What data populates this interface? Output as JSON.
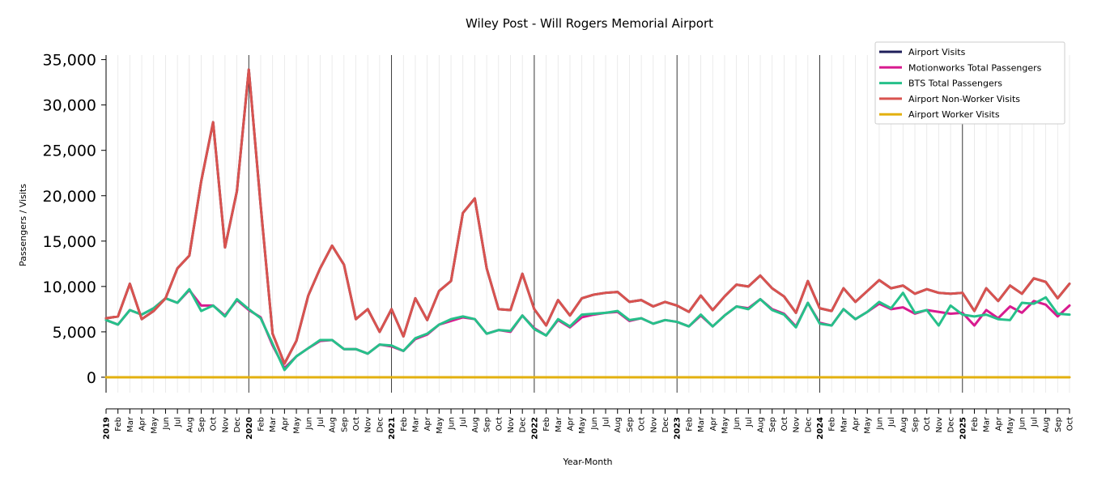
{
  "chart_data": {
    "type": "line",
    "title": "Wiley Post - Will Rogers Memorial Airport",
    "xlabel": "Year-Month",
    "ylabel": "Passengers / Visits",
    "ylim": [
      -1700,
      35500
    ],
    "yticks": [
      0,
      5000,
      10000,
      15000,
      20000,
      25000,
      30000,
      35000
    ],
    "ytick_labels": [
      "0",
      "5,000",
      "10,000",
      "15,000",
      "20,000",
      "25,000",
      "30,000",
      "35,000"
    ],
    "grid": "vertical lines at each month, darker at each January",
    "legend_position": "top-right",
    "x_labels": [
      "2019",
      "Feb",
      "Mar",
      "Apr",
      "May",
      "Jun",
      "Jul",
      "Aug",
      "Sep",
      "Oct",
      "Nov",
      "Dec",
      "2020",
      "Feb",
      "Mar",
      "Apr",
      "May",
      "Jun",
      "Jul",
      "Aug",
      "Sep",
      "Oct",
      "Nov",
      "Dec",
      "2021",
      "Feb",
      "Mar",
      "Apr",
      "May",
      "Jun",
      "Jul",
      "Aug",
      "Sep",
      "Oct",
      "Nov",
      "Dec",
      "2022",
      "Feb",
      "Mar",
      "Apr",
      "May",
      "Jun",
      "Jul",
      "Aug",
      "Sep",
      "Oct",
      "Nov",
      "Dec",
      "2023",
      "Feb",
      "Mar",
      "Apr",
      "May",
      "Jun",
      "Jul",
      "Aug",
      "Sep",
      "Oct",
      "Nov",
      "Dec",
      "2024",
      "Feb",
      "Mar",
      "Apr",
      "May",
      "Jun",
      "Jul",
      "Aug",
      "Sep",
      "Oct",
      "Nov",
      "Dec",
      "2025",
      "Feb",
      "Mar",
      "Apr",
      "May",
      "Jun",
      "Jul",
      "Aug",
      "Sep",
      "Oct"
    ],
    "series": [
      {
        "name": "Airport Visits",
        "color": "#1f1f5a",
        "values": [
          6500,
          6700,
          10300,
          6400,
          7300,
          8700,
          12000,
          13400,
          21600,
          28100,
          14300,
          20500,
          33900,
          18900,
          4800,
          1500,
          4000,
          9000,
          12000,
          14500,
          12400,
          6400,
          7500,
          5000,
          7500,
          4500,
          8700,
          6300,
          9500,
          10600,
          18100,
          19700,
          12000,
          7500,
          7400,
          11400,
          7500,
          5700,
          8500,
          6800,
          8700,
          9100,
          9300,
          9400,
          8300,
          8500,
          7800,
          8300,
          7900,
          7200,
          9000,
          7400,
          8900,
          10200,
          10000,
          11200,
          9800,
          8900,
          7100,
          10600,
          7600,
          7300,
          9800,
          8300,
          9500,
          10700,
          9800,
          10100,
          9200,
          9700,
          9300,
          9200,
          9300,
          7300,
          9800,
          8400,
          10100,
          9200,
          10900,
          10500,
          8700,
          10300
        ]
      },
      {
        "name": "Motionworks Total Passengers",
        "color": "#d81b8f",
        "values": [
          6300,
          5800,
          7400,
          6900,
          7600,
          8700,
          8200,
          9600,
          7900,
          7900,
          6800,
          8500,
          7400,
          6600,
          3500,
          1000,
          2300,
          3200,
          4000,
          4100,
          3100,
          3100,
          2600,
          3600,
          3400,
          2900,
          4200,
          4700,
          5800,
          6200,
          6600,
          6400,
          4800,
          5200,
          5000,
          6800,
          5400,
          4600,
          6300,
          5500,
          6600,
          6900,
          7100,
          7200,
          6200,
          6500,
          5900,
          6300,
          6100,
          5600,
          6800,
          5600,
          6800,
          7800,
          7600,
          8600,
          7500,
          7000,
          5600,
          8200,
          6000,
          5700,
          7500,
          6400,
          7200,
          8100,
          7500,
          7700,
          7000,
          7400,
          7200,
          7000,
          7100,
          5700,
          7400,
          6500,
          7800,
          7100,
          8400,
          8000,
          6700,
          7900
        ]
      },
      {
        "name": "BTS Total Passengers",
        "color": "#26c08a",
        "values": [
          6300,
          5800,
          7400,
          6900,
          7600,
          8700,
          8200,
          9700,
          7300,
          7900,
          6700,
          8600,
          7500,
          6500,
          3700,
          800,
          2300,
          3200,
          4100,
          4100,
          3100,
          3100,
          2600,
          3600,
          3500,
          2900,
          4300,
          4800,
          5800,
          6400,
          6700,
          6400,
          4800,
          5200,
          5100,
          6800,
          5300,
          4600,
          6400,
          5600,
          6900,
          7000,
          7100,
          7300,
          6300,
          6500,
          5900,
          6300,
          6100,
          5600,
          6900,
          5600,
          6800,
          7800,
          7500,
          8600,
          7400,
          6900,
          5500,
          8200,
          5900,
          5700,
          7500,
          6400,
          7200,
          8300,
          7600,
          9300,
          7100,
          7400,
          5700,
          7900,
          6900,
          6700,
          6900,
          6400,
          6300,
          8200,
          8100,
          8800,
          7000,
          6900
        ]
      },
      {
        "name": "Airport Non-Worker Visits",
        "color": "#d9534f",
        "values": [
          6500,
          6700,
          10300,
          6400,
          7300,
          8700,
          12000,
          13400,
          21600,
          28100,
          14300,
          20500,
          33900,
          18900,
          4800,
          1500,
          4000,
          9000,
          12000,
          14500,
          12400,
          6400,
          7500,
          5000,
          7500,
          4500,
          8700,
          6300,
          9500,
          10600,
          18100,
          19700,
          12000,
          7500,
          7400,
          11400,
          7500,
          5700,
          8500,
          6800,
          8700,
          9100,
          9300,
          9400,
          8300,
          8500,
          7800,
          8300,
          7900,
          7200,
          9000,
          7400,
          8900,
          10200,
          10000,
          11200,
          9800,
          8900,
          7100,
          10600,
          7600,
          7300,
          9800,
          8300,
          9500,
          10700,
          9800,
          10100,
          9200,
          9700,
          9300,
          9200,
          9300,
          7300,
          9800,
          8400,
          10100,
          9200,
          10900,
          10500,
          8700,
          10300
        ]
      },
      {
        "name": "Airport Worker Visits",
        "color": "#e3b00f",
        "values": [
          0,
          0,
          0,
          0,
          0,
          0,
          0,
          0,
          0,
          0,
          0,
          0,
          0,
          0,
          0,
          0,
          0,
          0,
          0,
          0,
          0,
          0,
          0,
          0,
          0,
          0,
          0,
          0,
          0,
          0,
          0,
          0,
          0,
          0,
          0,
          0,
          0,
          0,
          0,
          0,
          0,
          0,
          0,
          0,
          0,
          0,
          0,
          0,
          0,
          0,
          0,
          0,
          0,
          0,
          0,
          0,
          0,
          0,
          0,
          0,
          0,
          0,
          0,
          0,
          0,
          0,
          0,
          0,
          0,
          0,
          0,
          0,
          0,
          0,
          0,
          0,
          0,
          0,
          0,
          0,
          0,
          0
        ]
      }
    ]
  }
}
